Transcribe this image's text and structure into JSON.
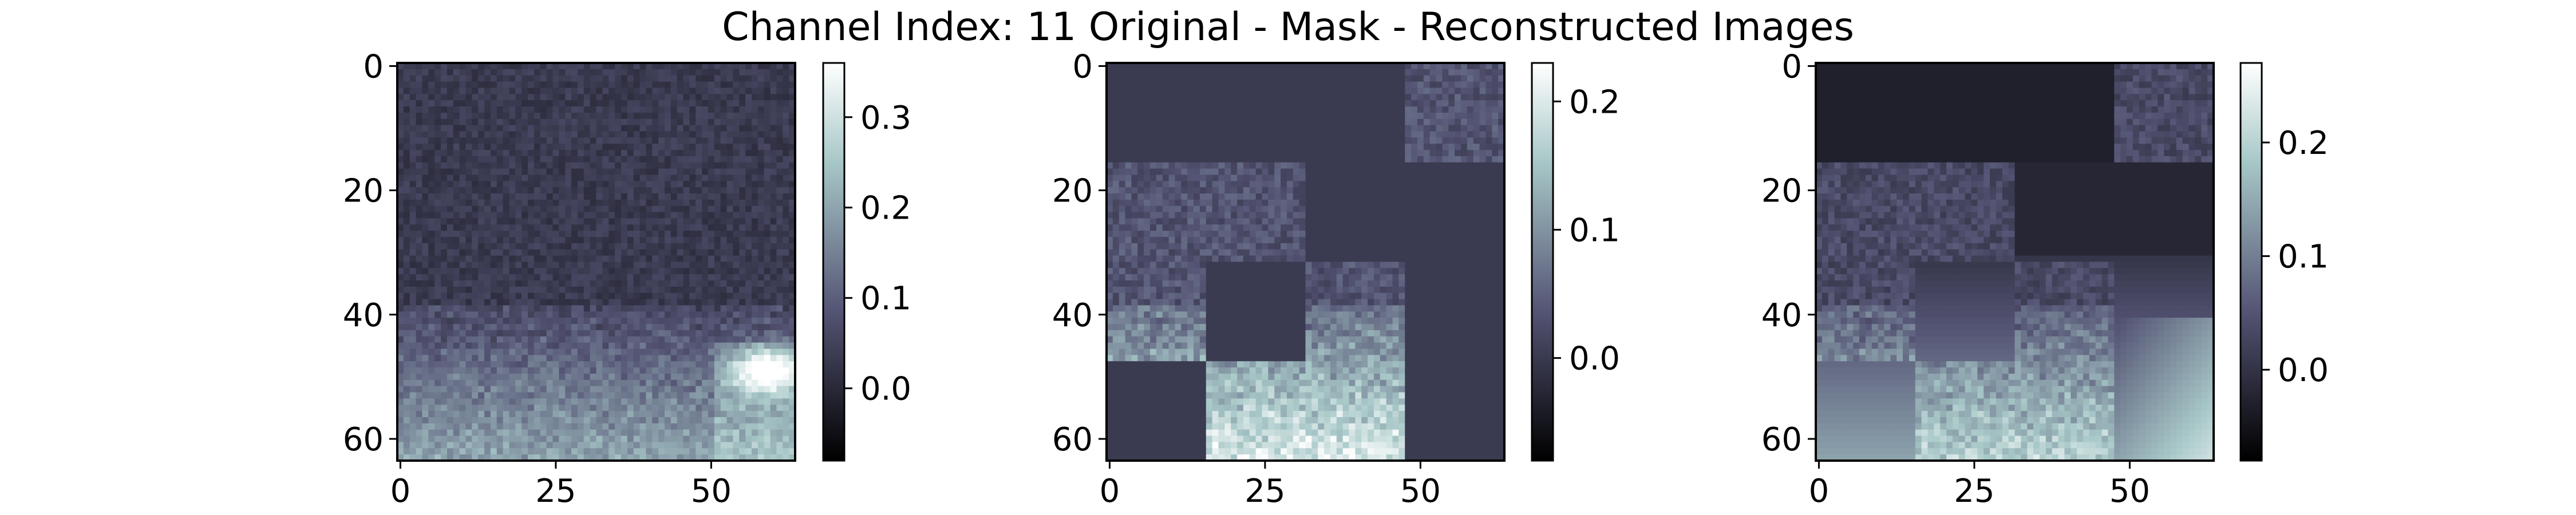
{
  "figure": {
    "title": "Channel Index: 11 Original - Mask - Reconstructed Images"
  },
  "chart_data": [
    {
      "type": "heatmap",
      "panel": "original",
      "xlim": [
        0,
        63
      ],
      "ylim": [
        63,
        0
      ],
      "xticks": [
        "0",
        "25",
        "50"
      ],
      "yticks": [
        "0",
        "20",
        "40",
        "60"
      ],
      "colormap": "bone",
      "colorbar": {
        "range": [
          -0.08,
          0.36
        ],
        "ticks": [
          "0.0",
          "0.1",
          "0.2",
          "0.3"
        ],
        "tick_values": [
          0.0,
          0.1,
          0.2,
          0.3
        ]
      },
      "grid": false
    },
    {
      "type": "heatmap",
      "panel": "mask",
      "xlim": [
        0,
        63
      ],
      "ylim": [
        63,
        0
      ],
      "xticks": [
        "0",
        "25",
        "50"
      ],
      "yticks": [
        "0",
        "20",
        "40",
        "60"
      ],
      "colormap": "bone",
      "mask_fill_value": 0.0,
      "visible_patches_16px": [
        [
          0,
          3
        ],
        [
          1,
          0
        ],
        [
          1,
          1
        ],
        [
          2,
          0
        ],
        [
          2,
          2
        ],
        [
          3,
          1
        ],
        [
          3,
          2
        ]
      ],
      "colorbar": {
        "range": [
          -0.08,
          0.23
        ],
        "ticks": [
          "0.0",
          "0.1",
          "0.2"
        ],
        "tick_values": [
          0.0,
          0.1,
          0.2
        ]
      },
      "grid": false
    },
    {
      "type": "heatmap",
      "panel": "reconstructed",
      "xlim": [
        0,
        63
      ],
      "ylim": [
        63,
        0
      ],
      "xticks": [
        "0",
        "25",
        "50"
      ],
      "yticks": [
        "0",
        "20",
        "40",
        "60"
      ],
      "colormap": "bone",
      "colorbar": {
        "range": [
          -0.08,
          0.27
        ],
        "ticks": [
          "0.0",
          "0.1",
          "0.2"
        ],
        "tick_values": [
          0.0,
          0.1,
          0.2
        ]
      },
      "grid": false
    }
  ]
}
